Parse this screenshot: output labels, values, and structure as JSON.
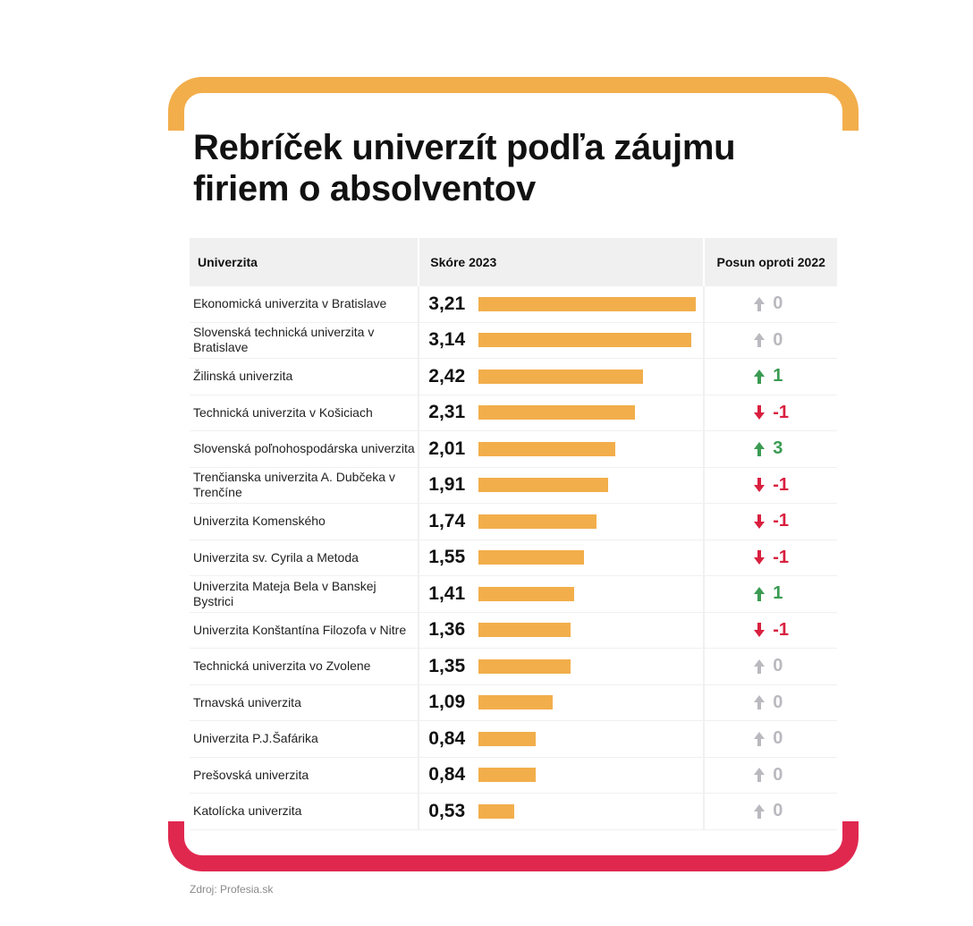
{
  "title": "Rebríček univerzít podľa záujmu firiem o absolventov",
  "source": "Zdroj: Profesia.sk",
  "colors": {
    "bar": "#f2ae4b",
    "frame_top": "#f2ae4b",
    "frame_bottom": "#e0284f",
    "up": "#3a9b52",
    "down": "#d9203f",
    "neutral": "#b9b9bf"
  },
  "chart_data": {
    "type": "table",
    "columns": [
      "Univerzita",
      "Skóre 2023",
      "Posun oproti 2022"
    ],
    "score_range": [
      0,
      3.3
    ],
    "rows": [
      {
        "name": "Ekonomická univerzita v Bratislave",
        "score": 3.21,
        "score_label": "3,21",
        "shift": 0,
        "shift_label": "0",
        "direction": "neutral"
      },
      {
        "name": "Slovenská technická univerzita v Bratislave",
        "score": 3.14,
        "score_label": "3,14",
        "shift": 0,
        "shift_label": "0",
        "direction": "neutral"
      },
      {
        "name": "Žilinská univerzita",
        "score": 2.42,
        "score_label": "2,42",
        "shift": 1,
        "shift_label": "1",
        "direction": "up"
      },
      {
        "name": "Technická univerzita v Košiciach",
        "score": 2.31,
        "score_label": "2,31",
        "shift": -1,
        "shift_label": "-1",
        "direction": "down"
      },
      {
        "name": "Slovenská poľnohospodárska univerzita",
        "score": 2.01,
        "score_label": "2,01",
        "shift": 3,
        "shift_label": "3",
        "direction": "up"
      },
      {
        "name": "Trenčianska univerzita A. Dubčeka v Trenčíne",
        "score": 1.91,
        "score_label": "1,91",
        "shift": -1,
        "shift_label": "-1",
        "direction": "down"
      },
      {
        "name": "Univerzita Komenského",
        "score": 1.74,
        "score_label": "1,74",
        "shift": -1,
        "shift_label": "-1",
        "direction": "down"
      },
      {
        "name": "Univerzita sv. Cyrila a Metoda",
        "score": 1.55,
        "score_label": "1,55",
        "shift": -1,
        "shift_label": "-1",
        "direction": "down"
      },
      {
        "name": "Univerzita Mateja Bela v Banskej Bystrici",
        "score": 1.41,
        "score_label": "1,41",
        "shift": 1,
        "shift_label": "1",
        "direction": "up"
      },
      {
        "name": "Univerzita Konštantína Filozofa v Nitre",
        "score": 1.36,
        "score_label": "1,36",
        "shift": -1,
        "shift_label": "-1",
        "direction": "down"
      },
      {
        "name": "Technická univerzita vo Zvolene",
        "score": 1.35,
        "score_label": "1,35",
        "shift": 0,
        "shift_label": "0",
        "direction": "neutral"
      },
      {
        "name": "Trnavská univerzita",
        "score": 1.09,
        "score_label": "1,09",
        "shift": 0,
        "shift_label": "0",
        "direction": "neutral"
      },
      {
        "name": "Univerzita P.J.Šafárika",
        "score": 0.84,
        "score_label": "0,84",
        "shift": 0,
        "shift_label": "0",
        "direction": "neutral"
      },
      {
        "name": "Prešovská univerzita",
        "score": 0.84,
        "score_label": "0,84",
        "shift": 0,
        "shift_label": "0",
        "direction": "neutral"
      },
      {
        "name": "Katolícka univerzita",
        "score": 0.53,
        "score_label": "0,53",
        "shift": 0,
        "shift_label": "0",
        "direction": "neutral"
      }
    ]
  }
}
